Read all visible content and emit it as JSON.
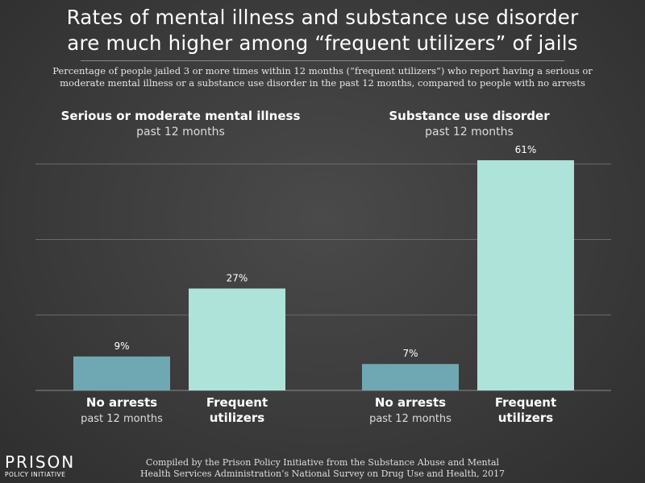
{
  "title_line1": "Rates of mental illness and substance use disorder",
  "title_line2": "are much higher among “frequent utilizers” of jails",
  "subtitle_line1": "Percentage of people jailed 3 or more times within 12 months (“frequent utilizers”) who report having a serious or",
  "subtitle_line2": "moderate mental illness or a substance use disorder in the past 12 months, compared to people with no arrests",
  "credit_line1": "Compiled by the Prison Policy Initiative from the Substance Abuse and Mental",
  "credit_line2": "Health Services Administration’s National Survey on Drug Use and Health, 2017",
  "logo": {
    "main": "PRISON",
    "sub": "POLICY INITIATIVE"
  },
  "colors": {
    "no_arrests": "#6fa8b3",
    "frequent": "#aee3d9",
    "grid": "#6a6a6a",
    "background": "#3d3d3d"
  },
  "chart_data": [
    {
      "type": "bar",
      "title": "Serious or moderate mental illness",
      "subtitle": "past 12 months",
      "categories": [
        {
          "label": "No arrests",
          "sublabel": "past 12 months"
        },
        {
          "label": "Frequent",
          "sublabel": "utilizers"
        }
      ],
      "values": [
        9,
        27
      ],
      "value_labels": [
        "9%",
        "27%"
      ],
      "ylim": [
        0,
        64
      ],
      "grid": true
    },
    {
      "type": "bar",
      "title": "Substance use disorder",
      "subtitle": "past 12 months",
      "categories": [
        {
          "label": "No arrests",
          "sublabel": "past 12 months"
        },
        {
          "label": "Frequent",
          "sublabel": "utilizers"
        }
      ],
      "values": [
        7,
        61
      ],
      "value_labels": [
        "7%",
        "61%"
      ],
      "ylim": [
        0,
        64
      ],
      "grid": true
    }
  ]
}
